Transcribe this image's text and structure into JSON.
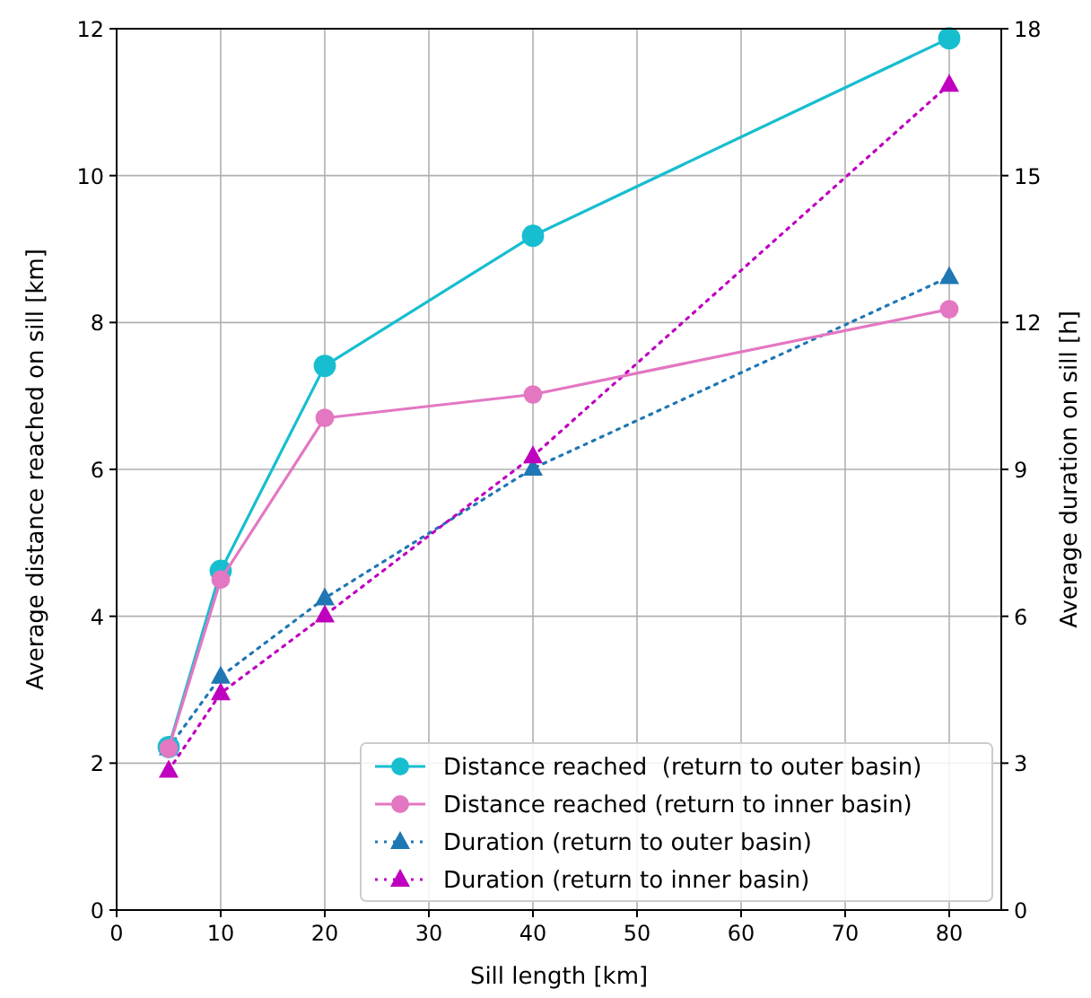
{
  "chart_data": {
    "type": "line",
    "xlabel": "Sill length [km]",
    "ylabel": "Average distance reached on sill [km]",
    "y2label": "Average duration on sill [h]",
    "x": [
      5,
      10,
      20,
      40,
      80
    ],
    "series": [
      {
        "name": "Distance reached  (return to outer basin)",
        "color": "#17becf",
        "values": [
          2.22,
          4.62,
          7.41,
          9.18,
          11.87
        ],
        "marker": "circle",
        "line_style": "solid"
      },
      {
        "name": "Distance reached (return to inner basin)",
        "color": "#e377c2",
        "values": [
          2.2,
          4.5,
          6.7,
          7.02,
          8.18
        ],
        "marker": "circle",
        "line_style": "solid"
      },
      {
        "name": "Duration (return to outer basin)",
        "color": "#1f77b4",
        "values": [
          3.31,
          4.77,
          6.37,
          9.02,
          12.93
        ],
        "marker": "triangle",
        "line_style": "dotted",
        "axis": "y2"
      },
      {
        "name": "Duration (return to inner basin)",
        "color": "#bf00bf",
        "values": [
          2.85,
          4.43,
          6.02,
          9.27,
          16.86
        ],
        "marker": "triangle",
        "line_style": "dotted",
        "axis": "y2"
      }
    ],
    "xlim": [
      0,
      85
    ],
    "xticks": [
      0,
      10,
      20,
      30,
      40,
      50,
      60,
      70,
      80
    ],
    "ylim": [
      0,
      12
    ],
    "yticks": [
      0,
      2,
      4,
      6,
      8,
      10,
      12
    ],
    "y2lim": [
      0,
      18
    ],
    "y2ticks": [
      0,
      3,
      6,
      9,
      12,
      15,
      18
    ],
    "grid": true,
    "legend": "bottom right"
  }
}
